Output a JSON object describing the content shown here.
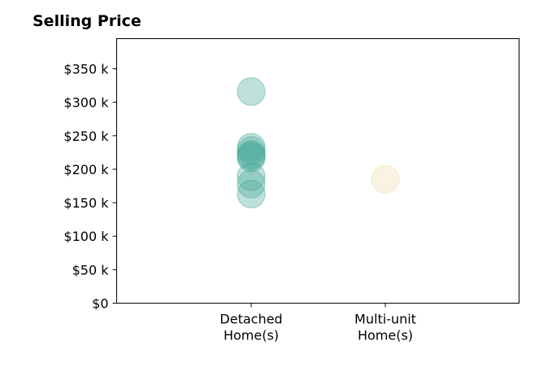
{
  "chart_data": {
    "type": "scatter",
    "title": "Selling Price",
    "xlabel": "",
    "ylabel": "",
    "categories": [
      [
        "Detached",
        "Home(s)"
      ],
      [
        "Multi-unit",
        "Home(s)"
      ]
    ],
    "ylim": [
      0,
      395000
    ],
    "yticks": [
      0,
      50000,
      100000,
      150000,
      200000,
      250000,
      300000,
      350000
    ],
    "ytick_labels": [
      "$0",
      "$50 k",
      "$100 k",
      "$150 k",
      "$200 k",
      "$250 k",
      "$300 k",
      "$350 k"
    ],
    "grid": false,
    "series": [
      {
        "category": 0,
        "color": "#48a99a",
        "values": [
          316000,
          233000,
          228000,
          222000,
          220000,
          217000,
          189000,
          178000,
          163000
        ]
      },
      {
        "category": 1,
        "color": "#f2dca8",
        "values": [
          185000
        ]
      }
    ]
  }
}
